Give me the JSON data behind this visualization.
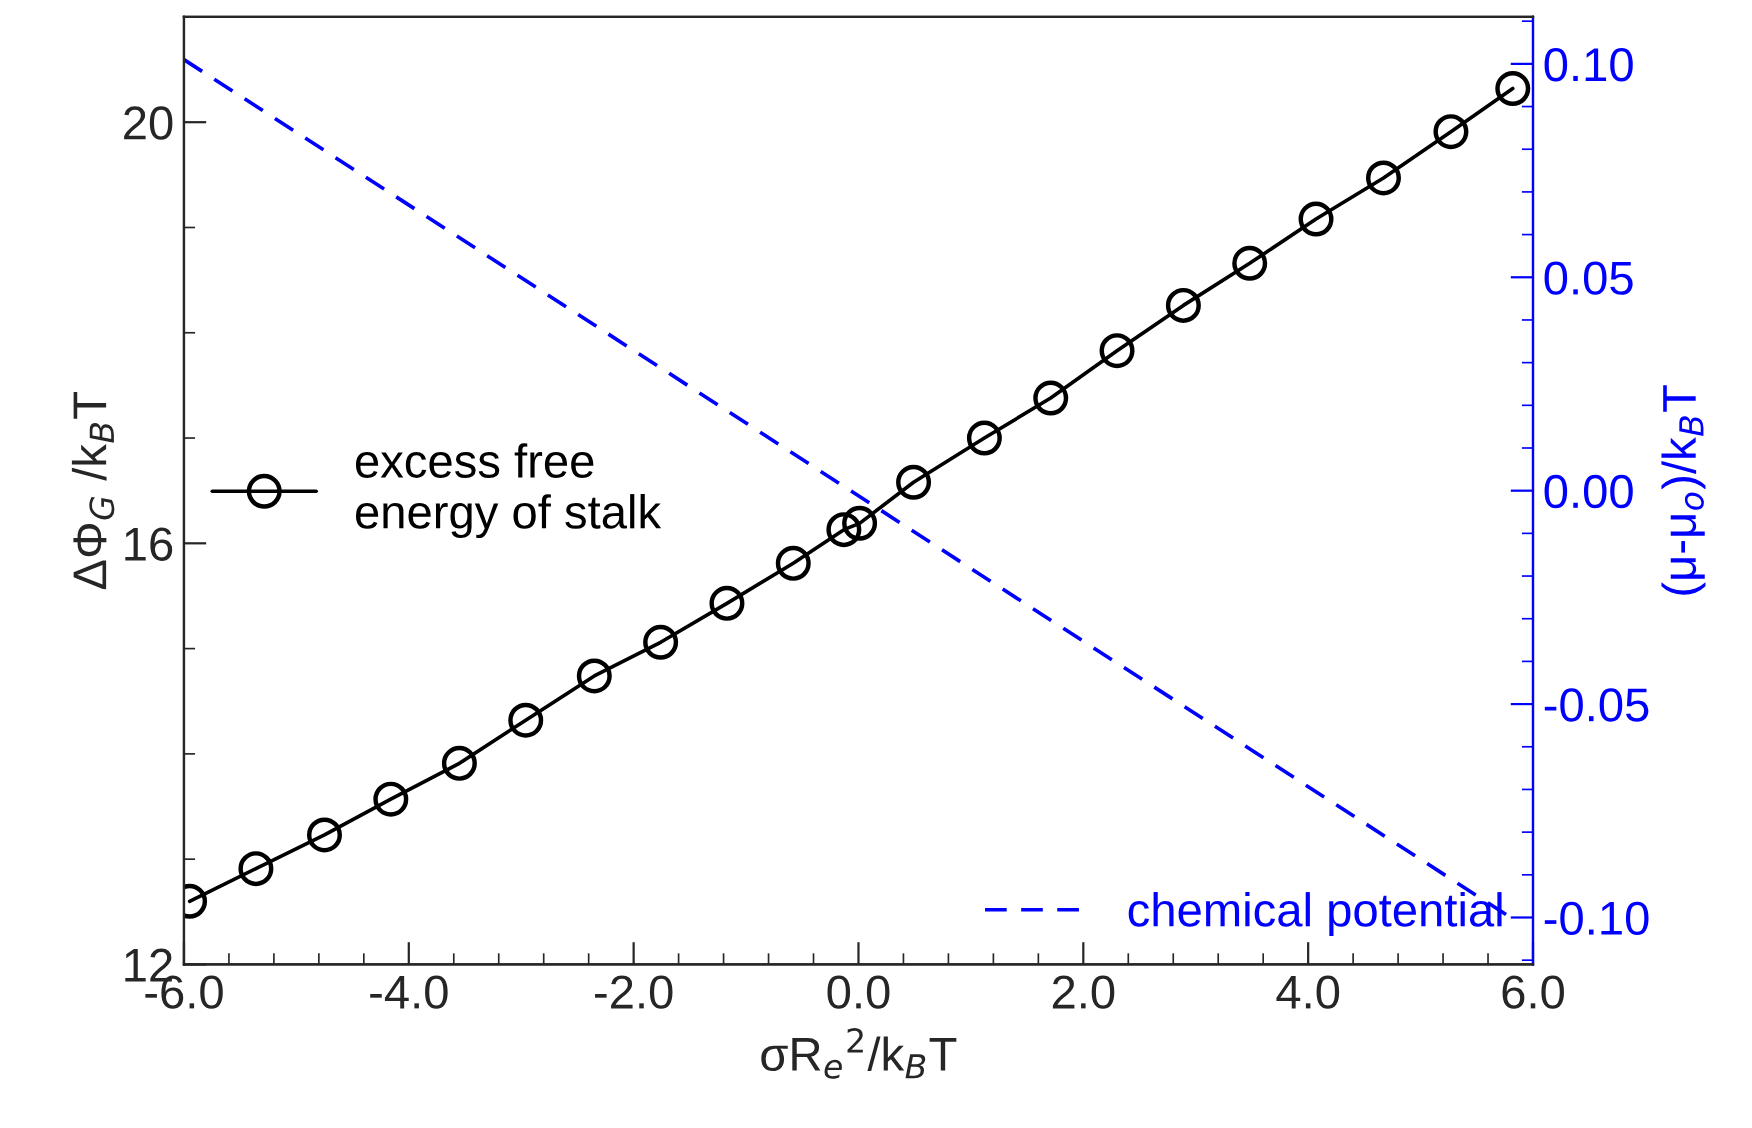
{
  "chart_data": {
    "type": "line",
    "xlabel": "σR$_{e}$$^{2}$/k$_{B}$T",
    "ylabel": "ΔΦ$_{G}$ /k$_{B}$T",
    "y2label": "(μ-μ$_{o}$)/k$_{B}$T",
    "xlim": [
      -6,
      6
    ],
    "xticks": [
      {
        "value": -6,
        "label": "-6.0"
      },
      {
        "value": -4,
        "label": "-4.0"
      },
      {
        "value": -2,
        "label": "-2.0"
      },
      {
        "value": 0,
        "label": "0.0"
      },
      {
        "value": 2,
        "label": "2.0"
      },
      {
        "value": 4,
        "label": "4.0"
      },
      {
        "value": 6,
        "label": "6.0"
      }
    ],
    "ylim": [
      12,
      21
    ],
    "yticks": [
      12,
      16,
      20
    ],
    "y2lim": [
      -0.111,
      0.111
    ],
    "y2ticks": [
      {
        "value": -0.1,
        "label": "-0.10"
      },
      {
        "value": -0.05,
        "label": "-0.05"
      },
      {
        "value": 0,
        "label": "0.00"
      },
      {
        "value": 0.05,
        "label": "0.05"
      },
      {
        "value": 0.1,
        "label": "0.10"
      }
    ],
    "grid": false,
    "legend": "center left",
    "series": [
      {
        "name": "excess free\nenergy of stalk",
        "color": "#000000",
        "marker": "circle",
        "line_style": "solid",
        "x": [
          -5.95,
          -5.36,
          -4.75,
          -4.16,
          -3.55,
          -2.96,
          -2.35,
          -1.76,
          -1.17,
          -0.58,
          -0.13,
          0.01,
          0.49,
          1.12,
          1.71,
          2.3,
          2.89,
          3.48,
          4.07,
          4.67,
          5.27,
          5.82
        ],
        "values": [
          12.6,
          12.91,
          13.23,
          13.57,
          13.91,
          14.32,
          14.74,
          15.06,
          15.43,
          15.81,
          16.13,
          16.19,
          16.58,
          17.0,
          17.38,
          17.83,
          18.26,
          18.66,
          19.08,
          19.47,
          19.91,
          20.32
        ]
      },
      {
        "name": "chemical potential",
        "color": "#0000ff",
        "marker": "none",
        "line_style": "dashed",
        "axis": "y2",
        "x": [
          -6.0,
          5.8
        ],
        "values": [
          0.101,
          -0.1
        ]
      }
    ]
  }
}
